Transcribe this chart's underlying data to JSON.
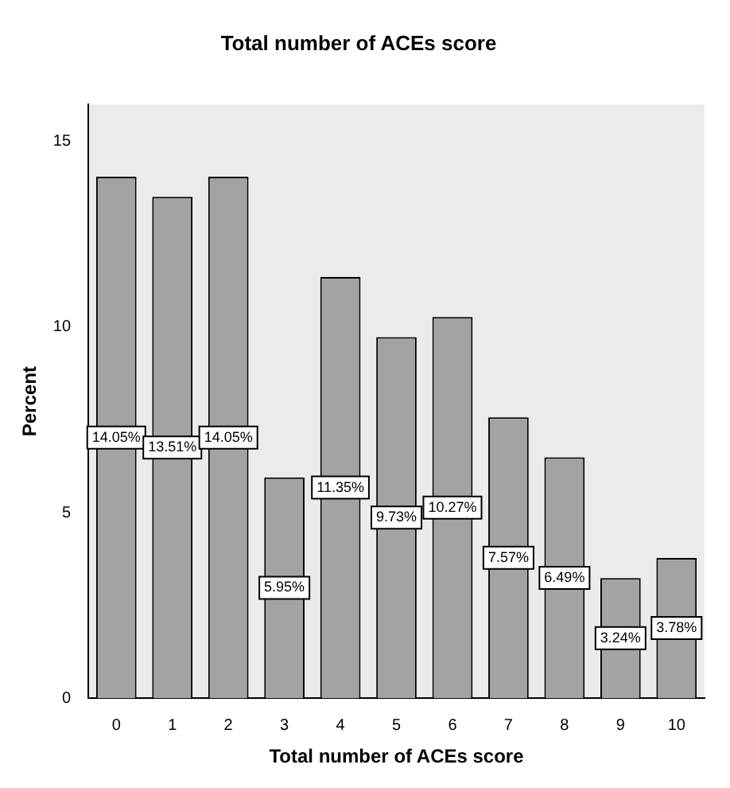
{
  "chart_data": {
    "type": "bar",
    "title": "Total number of ACEs score",
    "xlabel": "Total number of ACEs score",
    "ylabel": "Percent",
    "categories": [
      "0",
      "1",
      "2",
      "3",
      "4",
      "5",
      "6",
      "7",
      "8",
      "9",
      "10"
    ],
    "values": [
      14.05,
      13.51,
      14.05,
      5.95,
      11.35,
      9.73,
      10.27,
      7.57,
      6.49,
      3.24,
      3.78
    ],
    "value_labels": [
      "14.05%",
      "13.51%",
      "14.05%",
      "5.95%",
      "11.35%",
      "9.73%",
      "10.27%",
      "7.57%",
      "6.49%",
      "3.24%",
      "3.78%"
    ],
    "color": "#a3a3a3",
    "ylim": [
      0,
      16
    ],
    "yticks": [
      0,
      5,
      10,
      15
    ],
    "grid": false,
    "legend": false
  }
}
